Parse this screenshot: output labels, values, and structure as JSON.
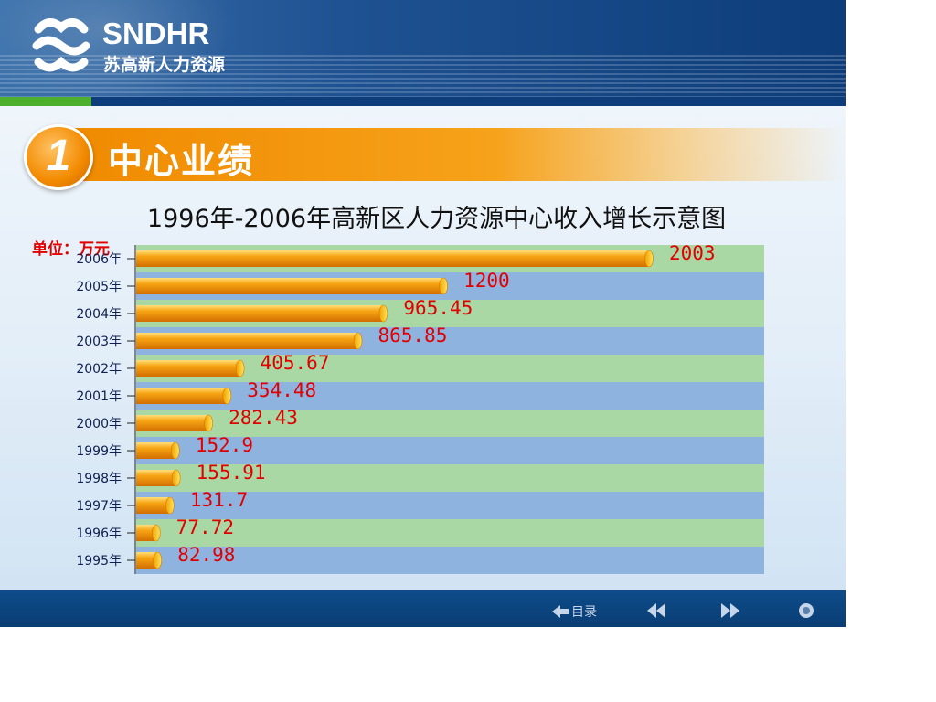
{
  "logo": {
    "en_prefix": "SND",
    "en_suffix": "HR",
    "cn": "苏高新人力资源"
  },
  "section": {
    "number": "1",
    "title": "中心业绩"
  },
  "footer": {
    "toc_label": "目录",
    "icons": [
      "back-arrow-icon",
      "rewind-icon",
      "fast-forward-icon",
      "end-circle-icon"
    ]
  },
  "colors": {
    "bar": "#f39a0e",
    "band_green": "#aad8a4",
    "band_blue": "#8fb3df",
    "label_red": "#e00000",
    "header_blue": "#1f5292"
  },
  "chart_data": {
    "type": "bar",
    "orientation": "horizontal",
    "title": "1996年-2006年高新区人力资源中心收入增长示意图",
    "unit_label": "单位：万元",
    "categories": [
      "2006年",
      "2005年",
      "2004年",
      "2003年",
      "2002年",
      "2001年",
      "2000年",
      "1999年",
      "1998年",
      "1997年",
      "1996年",
      "1995年"
    ],
    "values": [
      2003,
      1200,
      965.45,
      865.85,
      405.67,
      354.48,
      282.43,
      152.9,
      155.91,
      131.7,
      77.72,
      82.98
    ],
    "value_labels": [
      "2003",
      "1200",
      "965.45",
      "865.85",
      "405.67",
      "354.48",
      "282.43",
      "152.9",
      "155.91",
      "131.7",
      "77.72",
      "82.98"
    ],
    "xlim": [
      0,
      2003
    ],
    "grid": false,
    "legend": "none"
  }
}
